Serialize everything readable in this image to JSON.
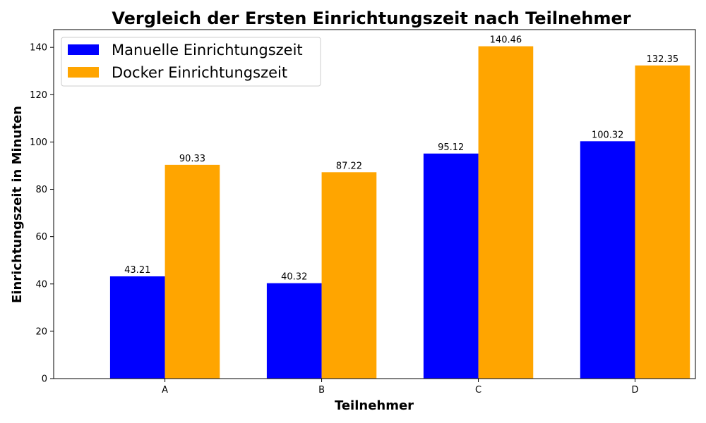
{
  "chart_data": {
    "type": "bar",
    "title": "Vergleich der Ersten Einrichtungszeit nach Teilnehmer",
    "xlabel": "Teilnehmer",
    "ylabel": "Einrichtungszeit in Minuten",
    "categories": [
      "A",
      "B",
      "C",
      "D"
    ],
    "series": [
      {
        "name": "Manuelle Einrichtungszeit",
        "values": [
          43.21,
          40.32,
          95.12,
          100.32
        ],
        "color": "#0000ff"
      },
      {
        "name": "Docker Einrichtungszeit",
        "values": [
          90.33,
          87.22,
          140.46,
          132.35
        ],
        "color": "#ffa500"
      }
    ],
    "ylim": [
      0,
      147.5
    ],
    "yticks": [
      0,
      20,
      40,
      60,
      80,
      100,
      120,
      140
    ],
    "grid": false,
    "legend_position": "top-left",
    "data_labels": true
  }
}
